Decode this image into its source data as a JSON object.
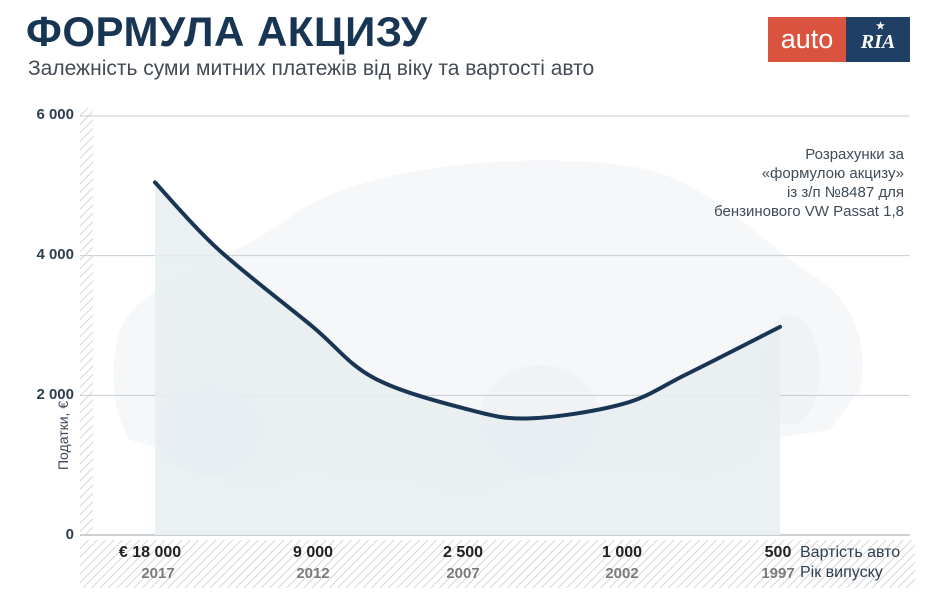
{
  "header": {
    "title": "ФОРМУЛА АКЦИЗУ",
    "subtitle": "Залежність суми митних платежів від віку та вартості авто"
  },
  "logo": {
    "part1": "auto",
    "part2": "RIA",
    "colors": {
      "auto_bg": "#d9533e",
      "ria_bg": "#1f3f64"
    }
  },
  "note": "Розрахунки за\n«формулою акцизу»\nіз з/п №8487 для\nбензинового VW Passat 1,8",
  "colors": {
    "line": "#183654",
    "fill": "#e8edf1",
    "grid": "#c8ced4",
    "hatch": "#d6d6d6"
  },
  "chart_data": {
    "type": "line",
    "title": "ФОРМУЛА АКЦИЗУ",
    "subtitle": "Залежність суми митних платежів від віку та вартості авто",
    "ylabel": "Податки, €",
    "ylim": [
      0,
      6000
    ],
    "yticks": [
      0,
      2000,
      4000,
      6000
    ],
    "ytick_labels": [
      "0",
      "2 000",
      "4 000",
      "6 000"
    ],
    "x_categories": [
      {
        "price": "€ 18 000",
        "year": "2017"
      },
      {
        "price": "9 000",
        "year": "2012"
      },
      {
        "price": "2 500",
        "year": "2007"
      },
      {
        "price": "1 000",
        "year": "2002"
      },
      {
        "price": "500",
        "year": "1997"
      }
    ],
    "x_axis_labels": {
      "price": "Вартість авто",
      "year": "Рік випуску"
    },
    "grid": true,
    "series": [
      {
        "values_by_year": [
          {
            "year": 2017,
            "tax": 5050
          },
          {
            "year": 2015,
            "tax": 4100
          },
          {
            "year": 2012,
            "tax": 3000
          },
          {
            "year": 2010,
            "tax": 2250
          },
          {
            "year": 2007,
            "tax": 1800
          },
          {
            "year": 2005,
            "tax": 1670
          },
          {
            "year": 2002,
            "tax": 1880
          },
          {
            "year": 2000,
            "tax": 2300
          },
          {
            "year": 1997,
            "tax": 2980
          }
        ]
      }
    ]
  }
}
